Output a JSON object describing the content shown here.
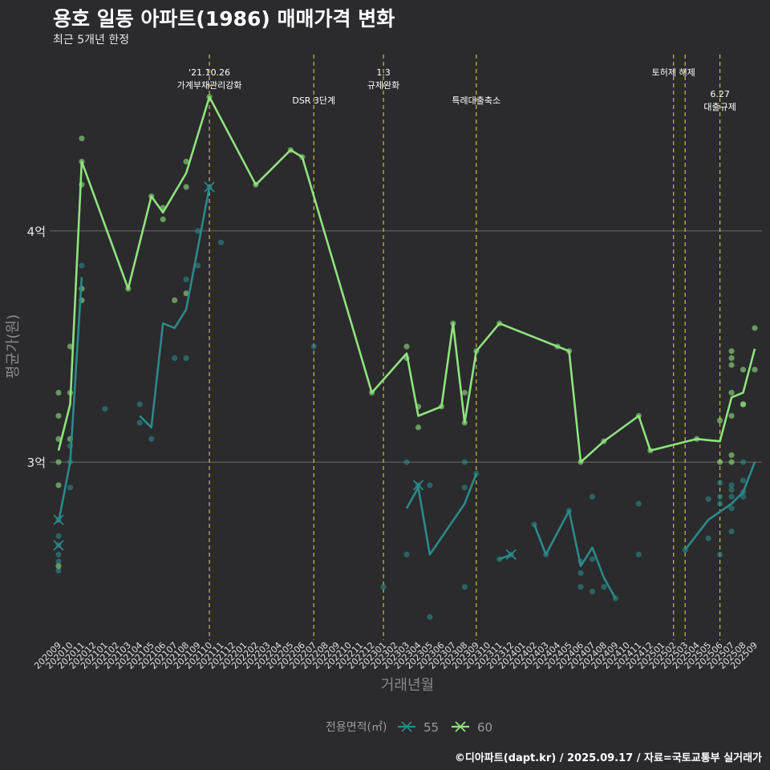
{
  "header": {
    "title": "용호 일동 아파트(1986) 매매가격 변화",
    "subtitle": "최근 5개년 한정"
  },
  "footer": {
    "caption": "©디아파트(dapt.kr) / 2025.09.17 / 자료=국토교통부 실거래가"
  },
  "colors": {
    "background": "#2b2a2d",
    "series_55": "#2a8a8a",
    "series_60": "#8fe37e",
    "event_line": "#d4d42a",
    "grid": "#6b6b6b"
  },
  "chart_data": {
    "type": "line",
    "xlabel": "거래년월",
    "ylabel": "평균가(원)",
    "y_unit": "억",
    "ylim": [
      2.23,
      4.77
    ],
    "yticks": [
      3,
      4
    ],
    "ytick_labels": [
      "3억",
      "4억"
    ],
    "categories": [
      "202009",
      "202010",
      "202011",
      "202012",
      "202101",
      "202102",
      "202103",
      "202104",
      "202105",
      "202106",
      "202107",
      "202108",
      "202109",
      "202110",
      "202111",
      "202112",
      "202201",
      "202202",
      "202203",
      "202204",
      "202205",
      "202206",
      "202207",
      "202208",
      "202209",
      "202210",
      "202211",
      "202212",
      "202301",
      "202302",
      "202303",
      "202304",
      "202305",
      "202306",
      "202307",
      "202308",
      "202309",
      "202310",
      "202311",
      "202312",
      "202401",
      "202402",
      "202403",
      "202404",
      "202405",
      "202406",
      "202407",
      "202408",
      "202409",
      "202410",
      "202411",
      "202412",
      "202501",
      "202502",
      "202503",
      "202504",
      "202505",
      "202506",
      "202507",
      "202508",
      "202509"
    ],
    "events": [
      {
        "x": "202110",
        "label_lines": [
          "'21.10.26",
          "가계부채관리강화"
        ],
        "label_row": 0
      },
      {
        "x": "202207",
        "label_lines": [
          "DSR 3단계"
        ],
        "label_row": 1
      },
      {
        "x": "202301",
        "label_lines": [
          "1.3",
          "규제완화"
        ],
        "label_row": 0
      },
      {
        "x": "202309",
        "label_lines": [
          "특례대출축소"
        ],
        "label_row": 1
      },
      {
        "x": "202502",
        "label_lines": [
          "토허제 해제"
        ],
        "label_row": 0
      },
      {
        "x": "202503",
        "label_lines": [],
        "label_row": 0
      },
      {
        "x": "202506",
        "label_lines": [
          "6.27",
          "대출규제"
        ],
        "label_row": 1
      }
    ],
    "legend": {
      "title": "전용면적(㎡)",
      "position": "bottom"
    },
    "grid": "horizontal",
    "series": [
      {
        "name": "55",
        "color": "#2a8a8a",
        "line": [
          [
            [
              "202009",
              2.74
            ],
            [
              "202010",
              3.0
            ],
            [
              "202011",
              3.8
            ]
          ],
          [
            [
              "202104",
              3.2
            ],
            [
              "202105",
              3.15
            ],
            [
              "202106",
              3.6
            ],
            [
              "202107",
              3.58
            ],
            [
              "202108",
              3.66
            ],
            [
              "202110",
              4.19
            ]
          ],
          [
            [
              "202303",
              2.8
            ],
            [
              "202304",
              2.89
            ],
            [
              "202305",
              2.6
            ],
            [
              "202308",
              2.82
            ],
            [
              "202309",
              2.95
            ]
          ],
          [
            [
              "202311",
              2.58
            ],
            [
              "202312",
              2.6
            ]
          ],
          [
            [
              "202402",
              2.73
            ],
            [
              "202403",
              2.6
            ],
            [
              "202405",
              2.79
            ],
            [
              "202406",
              2.55
            ],
            [
              "202407",
              2.63
            ],
            [
              "202408",
              2.5
            ],
            [
              "202409",
              2.41
            ]
          ],
          [
            [
              "202503",
              2.62
            ],
            [
              "202505",
              2.75
            ],
            [
              "202507",
              2.82
            ],
            [
              "202508",
              2.87
            ],
            [
              "202509",
              3.0
            ]
          ]
        ],
        "points": [
          [
            "202009",
            2.75
          ],
          [
            "202009",
            2.68
          ],
          [
            "202009",
            2.64
          ],
          [
            "202009",
            2.6
          ],
          [
            "202009",
            2.57
          ],
          [
            "202009",
            2.53
          ],
          [
            "202010",
            3.07
          ],
          [
            "202010",
            3.0
          ],
          [
            "202010",
            2.89
          ],
          [
            "202011",
            3.85
          ],
          [
            "202101",
            3.23
          ],
          [
            "202104",
            3.25
          ],
          [
            "202104",
            3.17
          ],
          [
            "202105",
            3.1
          ],
          [
            "202107",
            3.45
          ],
          [
            "202108",
            3.79
          ],
          [
            "202108",
            3.45
          ],
          [
            "202109",
            3.85
          ],
          [
            "202109",
            4.0
          ],
          [
            "202110",
            4.19
          ],
          [
            "202111",
            3.95
          ],
          [
            "202207",
            3.5
          ],
          [
            "202301",
            2.46
          ],
          [
            "202303",
            3.0
          ],
          [
            "202303",
            2.6
          ],
          [
            "202304",
            2.9
          ],
          [
            "202305",
            2.9
          ],
          [
            "202305",
            2.33
          ],
          [
            "202308",
            3.0
          ],
          [
            "202308",
            2.89
          ],
          [
            "202308",
            2.46
          ],
          [
            "202309",
            2.95
          ],
          [
            "202311",
            2.58
          ],
          [
            "202312",
            2.6
          ],
          [
            "202402",
            2.73
          ],
          [
            "202403",
            2.6
          ],
          [
            "202405",
            2.79
          ],
          [
            "202406",
            2.57
          ],
          [
            "202406",
            2.52
          ],
          [
            "202406",
            2.46
          ],
          [
            "202407",
            2.85
          ],
          [
            "202407",
            2.58
          ],
          [
            "202407",
            2.44
          ],
          [
            "202408",
            2.46
          ],
          [
            "202409",
            2.41
          ],
          [
            "202411",
            2.82
          ],
          [
            "202411",
            2.6
          ],
          [
            "202503",
            2.62
          ],
          [
            "202505",
            2.84
          ],
          [
            "202505",
            2.67
          ],
          [
            "202506",
            2.91
          ],
          [
            "202506",
            2.85
          ],
          [
            "202506",
            2.82
          ],
          [
            "202506",
            2.6
          ],
          [
            "202507",
            2.9
          ],
          [
            "202507",
            2.88
          ],
          [
            "202507",
            2.85
          ],
          [
            "202507",
            2.8
          ],
          [
            "202507",
            2.7
          ],
          [
            "202508",
            2.92
          ],
          [
            "202508",
            2.87
          ],
          [
            "202508",
            2.85
          ],
          [
            "202508",
            3.0
          ]
        ]
      },
      {
        "name": "60",
        "color": "#8fe37e",
        "line": [
          [
            [
              "202009",
              3.05
            ],
            [
              "202010",
              3.25
            ],
            [
              "202011",
              4.3
            ],
            [
              "202103",
              3.75
            ],
            [
              "202105",
              4.15
            ],
            [
              "202106",
              4.08
            ],
            [
              "202108",
              4.25
            ],
            [
              "202110",
              4.58
            ],
            [
              "202202",
              4.2
            ],
            [
              "202205",
              4.35
            ],
            [
              "202206",
              4.32
            ],
            [
              "202207",
              4.15
            ],
            [
              "202212",
              3.3
            ],
            [
              "202303",
              3.47
            ],
            [
              "202304",
              3.2
            ],
            [
              "202306",
              3.24
            ],
            [
              "202307",
              3.6
            ],
            [
              "202308",
              3.17
            ],
            [
              "202309",
              3.48
            ],
            [
              "202311",
              3.6
            ],
            [
              "202404",
              3.5
            ],
            [
              "202405",
              3.48
            ],
            [
              "202406",
              3.0
            ],
            [
              "202408",
              3.09
            ],
            [
              "202411",
              3.2
            ],
            [
              "202412",
              3.05
            ],
            [
              "202504",
              3.1
            ],
            [
              "202506",
              3.09
            ],
            [
              "202507",
              3.28
            ],
            [
              "202508",
              3.3
            ],
            [
              "202509",
              3.49
            ]
          ]
        ],
        "points": [
          [
            "202009",
            3.3
          ],
          [
            "202009",
            3.2
          ],
          [
            "202009",
            3.1
          ],
          [
            "202009",
            3.0
          ],
          [
            "202009",
            2.9
          ],
          [
            "202009",
            2.55
          ],
          [
            "202010",
            3.5
          ],
          [
            "202010",
            3.3
          ],
          [
            "202010",
            3.1
          ],
          [
            "202011",
            4.4
          ],
          [
            "202011",
            4.3
          ],
          [
            "202011",
            4.2
          ],
          [
            "202011",
            3.75
          ],
          [
            "202011",
            3.7
          ],
          [
            "202103",
            3.75
          ],
          [
            "202105",
            4.15
          ],
          [
            "202106",
            4.1
          ],
          [
            "202106",
            4.05
          ],
          [
            "202107",
            3.7
          ],
          [
            "202108",
            4.3
          ],
          [
            "202108",
            4.19
          ],
          [
            "202108",
            3.73
          ],
          [
            "202110",
            4.58
          ],
          [
            "202202",
            4.2
          ],
          [
            "202205",
            4.35
          ],
          [
            "202206",
            4.32
          ],
          [
            "202212",
            3.3
          ],
          [
            "202303",
            3.5
          ],
          [
            "202303",
            3.45
          ],
          [
            "202304",
            3.24
          ],
          [
            "202304",
            3.15
          ],
          [
            "202306",
            3.24
          ],
          [
            "202307",
            3.6
          ],
          [
            "202308",
            3.3
          ],
          [
            "202308",
            3.17
          ],
          [
            "202309",
            3.48
          ],
          [
            "202311",
            3.6
          ],
          [
            "202404",
            3.5
          ],
          [
            "202405",
            3.48
          ],
          [
            "202406",
            3.0
          ],
          [
            "202408",
            3.09
          ],
          [
            "202411",
            3.2
          ],
          [
            "202412",
            3.05
          ],
          [
            "202504",
            3.1
          ],
          [
            "202506",
            3.18
          ],
          [
            "202506",
            3.0
          ],
          [
            "202507",
            3.48
          ],
          [
            "202507",
            3.45
          ],
          [
            "202507",
            3.42
          ],
          [
            "202507",
            3.3
          ],
          [
            "202507",
            3.2
          ],
          [
            "202507",
            3.03
          ],
          [
            "202507",
            3.0
          ],
          [
            "202508",
            3.4
          ],
          [
            "202508",
            3.25
          ],
          [
            "202508",
            3.25
          ],
          [
            "202509",
            3.58
          ],
          [
            "202509",
            3.4
          ]
        ]
      }
    ]
  }
}
